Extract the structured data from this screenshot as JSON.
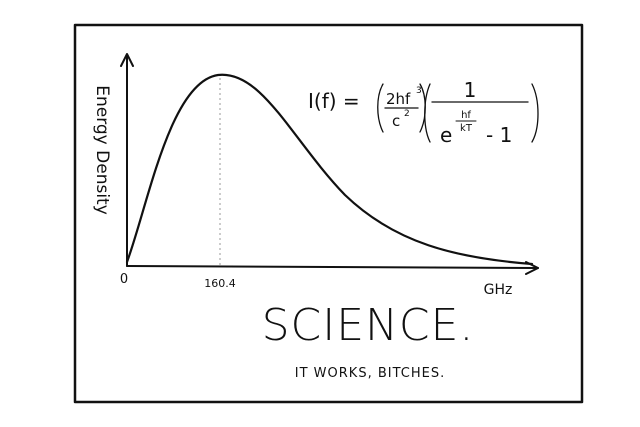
{
  "comic": {
    "y_axis_label": "Energy Density",
    "x_origin_label": "0",
    "x_peak_label": "160.4",
    "x_axis_label": "GHz",
    "formula": {
      "lhs": "I(f) =",
      "numerator": "2hf",
      "numerator_exp": "3",
      "denominator": "c",
      "denominator_exp": "2",
      "one": "1",
      "base": "e",
      "exp_num": "hf",
      "exp_den": "kT",
      "minus_one": "- 1"
    },
    "title": "SCIENCE.",
    "caption": "IT WORKS, BITCHES."
  }
}
